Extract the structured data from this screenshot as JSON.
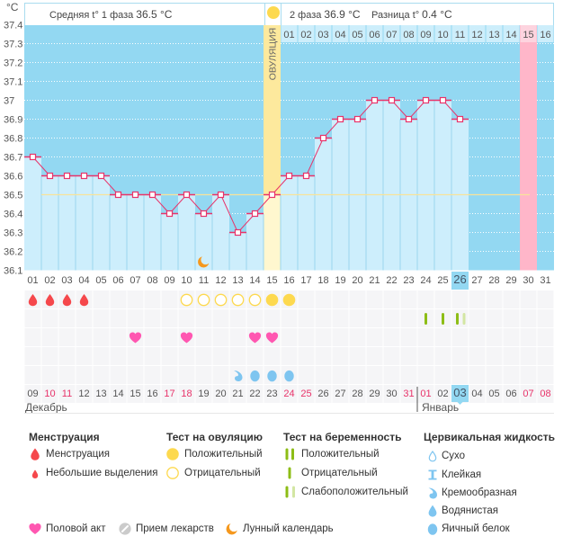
{
  "unit_label": "°C",
  "header": {
    "phase1_label": "Средняя t° 1 фаза",
    "phase1_value": "36.5 °C",
    "phase2_label": "2 фаза",
    "phase2_value": "36.9 °C",
    "diff_label": "Разница t°",
    "diff_value": "0.4 °C",
    "ovulation_label": "ОВУЛЯЦИЯ"
  },
  "colors": {
    "chart_bg": "#93d8f2",
    "bar": "#cdeefc",
    "separator": "#9ad6ee",
    "header_cell": "#cdeefb",
    "ovulation_upper": "#fde99d",
    "ovulation_lower": "#fff7cf",
    "expected_period": "#ffb6c9",
    "expected_period_header": "#fdd4df",
    "coverline": "#f8e39a",
    "temp_line": "#e8336a",
    "menstruation": "#f5484c",
    "ovulation_test": "#fdd94f",
    "pregnancy": "#8dbd16",
    "pregnancy_light": "#d3e6a3",
    "heart": "#ff57b1",
    "cervical": "#7ec5f0",
    "pill": "#cbcbcb",
    "moon": "#f5981d",
    "weekend": "#e8336a",
    "text": "#555555",
    "cell_bg": "#f5f5f7"
  },
  "chart_data": {
    "type": "line",
    "title": "",
    "xlabel": "",
    "ylabel": "°C",
    "ylim": [
      36.1,
      37.4
    ],
    "y_ticks": [
      "37.4",
      "37.3",
      "37.2",
      "37.1",
      "37",
      "36.9",
      "36.8",
      "36.7",
      "36.6",
      "36.5",
      "36.4",
      "36.3",
      "36.2",
      "36.1"
    ],
    "grid": true,
    "categories": [
      "01",
      "02",
      "03",
      "04",
      "05",
      "06",
      "07",
      "08",
      "09",
      "10",
      "11",
      "12",
      "13",
      "14",
      "15",
      "16",
      "17",
      "18",
      "19",
      "20",
      "21",
      "22",
      "23",
      "24",
      "25",
      "26",
      "27",
      "28",
      "29",
      "30",
      "31"
    ],
    "series": [
      {
        "name": "Базальная температура",
        "values": [
          36.7,
          36.6,
          36.6,
          36.6,
          36.6,
          36.5,
          36.5,
          36.5,
          36.4,
          36.5,
          36.4,
          36.5,
          36.3,
          36.4,
          36.5,
          36.6,
          36.6,
          36.8,
          36.9,
          36.9,
          37.0,
          37.0,
          36.9,
          37.0,
          37.0,
          36.9,
          null,
          null,
          null,
          null,
          null
        ]
      }
    ],
    "coverline": 36.5,
    "ovulation_day": 15,
    "expected_period_day": 30,
    "current_cycle_day": 26,
    "phase2_start_day": 16,
    "phase2_day_labels": [
      "01",
      "02",
      "03",
      "04",
      "05",
      "06",
      "07",
      "08",
      "09",
      "10",
      "11",
      "12",
      "13",
      "14",
      "15",
      "16"
    ],
    "legend": "bottom"
  },
  "calendar": {
    "dates": [
      {
        "label": "09",
        "weekend": false
      },
      {
        "label": "10",
        "weekend": true
      },
      {
        "label": "11",
        "weekend": true
      },
      {
        "label": "12",
        "weekend": false
      },
      {
        "label": "13",
        "weekend": false
      },
      {
        "label": "14",
        "weekend": false
      },
      {
        "label": "15",
        "weekend": false
      },
      {
        "label": "16",
        "weekend": false
      },
      {
        "label": "17",
        "weekend": true
      },
      {
        "label": "18",
        "weekend": true
      },
      {
        "label": "19",
        "weekend": false
      },
      {
        "label": "20",
        "weekend": false
      },
      {
        "label": "21",
        "weekend": false
      },
      {
        "label": "22",
        "weekend": false
      },
      {
        "label": "23",
        "weekend": false
      },
      {
        "label": "24",
        "weekend": true
      },
      {
        "label": "25",
        "weekend": true
      },
      {
        "label": "26",
        "weekend": false
      },
      {
        "label": "27",
        "weekend": false
      },
      {
        "label": "28",
        "weekend": false
      },
      {
        "label": "29",
        "weekend": false
      },
      {
        "label": "30",
        "weekend": false
      },
      {
        "label": "31",
        "weekend": true
      },
      {
        "label": "01",
        "weekend": true
      },
      {
        "label": "02",
        "weekend": false
      },
      {
        "label": "03",
        "weekend": false
      },
      {
        "label": "04",
        "weekend": false
      },
      {
        "label": "05",
        "weekend": false
      },
      {
        "label": "06",
        "weekend": false
      },
      {
        "label": "07",
        "weekend": true
      },
      {
        "label": "08",
        "weekend": true
      }
    ],
    "today_index": 25,
    "months": [
      {
        "label": "Декабрь",
        "start_index": 0
      },
      {
        "label": "Январь",
        "start_index": 23
      }
    ]
  },
  "events": {
    "menstruation": [
      1,
      2,
      3,
      4
    ],
    "ovulation_test": [
      {
        "day": 10,
        "result": "negative"
      },
      {
        "day": 11,
        "result": "negative"
      },
      {
        "day": 12,
        "result": "negative"
      },
      {
        "day": 13,
        "result": "negative"
      },
      {
        "day": 14,
        "result": "negative"
      },
      {
        "day": 15,
        "result": "positive"
      },
      {
        "day": 16,
        "result": "positive"
      }
    ],
    "pregnancy_test": [
      {
        "day": 24,
        "result": "negative"
      },
      {
        "day": 25,
        "result": "negative"
      },
      {
        "day": 26,
        "result": "weak"
      }
    ],
    "intercourse": [
      7,
      10,
      14,
      15
    ],
    "medication": [],
    "cervical_fluid": [
      {
        "day": 13,
        "type": "creamy"
      },
      {
        "day": 14,
        "type": "egg-white"
      },
      {
        "day": 15,
        "type": "egg-white"
      },
      {
        "day": 16,
        "type": "egg-white"
      }
    ],
    "moon": [
      11
    ]
  },
  "legend": {
    "menstruation": {
      "title": "Менструация",
      "items": [
        {
          "icon": "blood-drop",
          "label": "Менструация"
        },
        {
          "icon": "small-blood-drop",
          "label": "Небольшие выделения"
        }
      ]
    },
    "ovulation_test": {
      "title": "Тест на овуляцию",
      "items": [
        {
          "icon": "ovulation-positive",
          "label": "Положительный"
        },
        {
          "icon": "ovulation-negative",
          "label": "Отрицательный"
        }
      ]
    },
    "pregnancy_test": {
      "title": "Тест на беременность",
      "items": [
        {
          "icon": "pregnancy-positive",
          "label": "Положительный"
        },
        {
          "icon": "pregnancy-negative",
          "label": "Отрицательный"
        },
        {
          "icon": "pregnancy-weak",
          "label": "Слабоположительный"
        }
      ]
    },
    "cervical_fluid": {
      "title": "Цервикальная жидкость",
      "items": [
        {
          "icon": "cervical-dry",
          "label": "Сухо"
        },
        {
          "icon": "cervical-sticky",
          "label": "Клейкая"
        },
        {
          "icon": "cervical-creamy",
          "label": "Кремообразная"
        },
        {
          "icon": "cervical-watery",
          "label": "Водянистая"
        },
        {
          "icon": "cervical-egg-white",
          "label": "Яичный белок"
        }
      ]
    },
    "other": [
      {
        "icon": "heart",
        "label": "Половой акт"
      },
      {
        "icon": "pill",
        "label": "Прием лекарств"
      },
      {
        "icon": "moon",
        "label": "Лунный календарь"
      }
    ]
  }
}
